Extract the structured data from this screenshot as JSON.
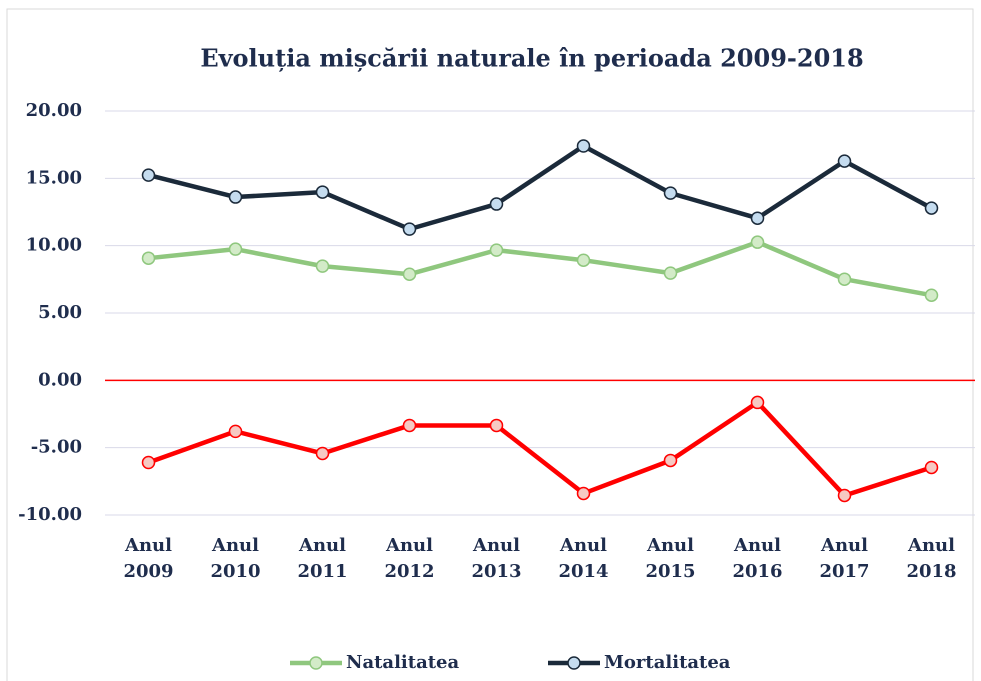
{
  "chart_data": {
    "type": "line",
    "title": "Evoluția mișcării naturale în perioada 2009-2018",
    "categories": [
      "Anul 2009",
      "Anul 2010",
      "Anul 2011",
      "Anul 2012",
      "Anul 2013",
      "Anul 2014",
      "Anul 2015",
      "Anul 2016",
      "Anul 2017",
      "Anul 2018"
    ],
    "series": [
      {
        "name": "Natalitatea",
        "color": "#8fc77e",
        "marker_fill": "#d3ebc8",
        "values": [
          9.07,
          9.74,
          8.48,
          7.88,
          9.67,
          8.92,
          7.96,
          10.26,
          7.51,
          6.32
        ]
      },
      {
        "name": "Mortalitatea",
        "color": "#1b2a3a",
        "marker_fill": "#c5dcef",
        "values": [
          15.24,
          13.61,
          13.98,
          11.23,
          13.09,
          17.4,
          13.9,
          12.04,
          16.28,
          12.79
        ]
      },
      {
        "color": "#ff0000",
        "marker_fill": "#f6c9c3",
        "values": [
          -6.1,
          -3.79,
          -5.43,
          -3.35,
          -3.35,
          -8.4,
          -5.95,
          -1.64,
          -8.55,
          -6.47
        ]
      }
    ],
    "ylim": [
      -10,
      20
    ],
    "yticks": [
      {
        "value": -10,
        "label": "-10.00"
      },
      {
        "value": -5,
        "label": "-5.00"
      },
      {
        "value": 0,
        "label": "0.00"
      },
      {
        "value": 5,
        "label": "5.00"
      },
      {
        "value": 10,
        "label": "10.00"
      },
      {
        "value": 15,
        "label": "15.00"
      },
      {
        "value": 20,
        "label": "20.00"
      }
    ],
    "grid": true,
    "zero_line_color": "#ff0000",
    "legend": "bottom"
  }
}
